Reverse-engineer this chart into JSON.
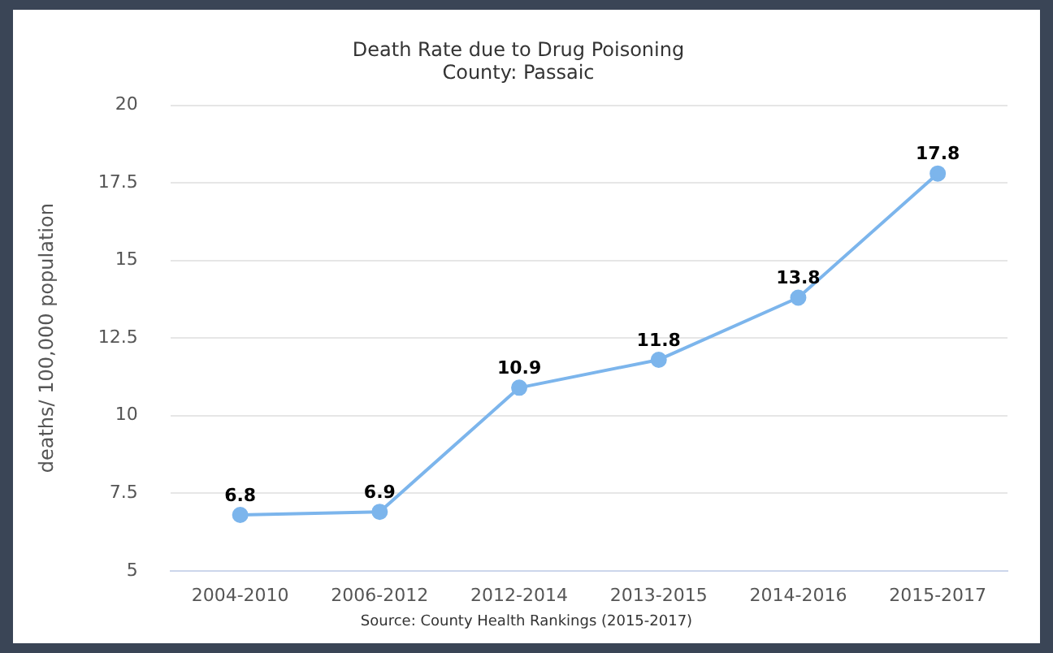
{
  "chart_data": {
    "type": "line",
    "title": "Death Rate due to Drug Poisoning",
    "subtitle": "County: Passaic",
    "ylabel": "deaths/ 100,000 population",
    "categories": [
      "2004-2010",
      "2006-2012",
      "2012-2014",
      "2013-2015",
      "2014-2016",
      "2015-2017"
    ],
    "series": [
      {
        "color": "#7cb5ec",
        "values": [
          6.8,
          6.9,
          10.9,
          11.8,
          13.8,
          17.8
        ]
      }
    ],
    "ylim": [
      5,
      20
    ],
    "yticks": [
      5,
      7.5,
      10,
      12.5,
      15,
      17.5,
      20
    ],
    "grid": "y",
    "marker": "circle",
    "line_style": "solid",
    "data_labels": true,
    "legend": false,
    "annotations": [
      "Source: County Health Rankings (2015-2017)"
    ]
  }
}
